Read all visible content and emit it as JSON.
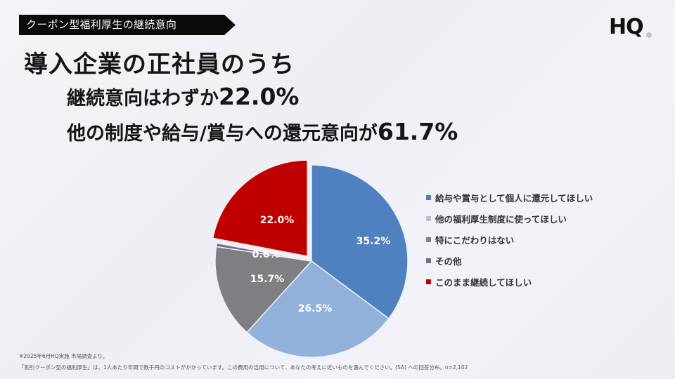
{
  "header": {
    "tag": "クーポン型福利厚生の継続意向",
    "logo": "HQ"
  },
  "headline": "導入企業の正社員のうち",
  "subheadline1": {
    "text": "継続意向はわずか",
    "value": "22.0%"
  },
  "subheadline2": {
    "text": "他の制度や給与/賞与への還元意向が",
    "value": "61.7%"
  },
  "chart_data": {
    "type": "pie",
    "title": "",
    "categories": [
      "給与や賞与として個人に還元してほしい",
      "他の福利厚生制度に使ってほしい",
      "特にこだわりはない",
      "その他",
      "このまま継続してほしい"
    ],
    "values": [
      35.2,
      26.5,
      15.7,
      0.6,
      22.0
    ],
    "labels": [
      "35.2%",
      "26.5%",
      "15.7%",
      "0.6%",
      "22.0%"
    ],
    "colors": [
      "#4f81c0",
      "#92b1da",
      "#7f7f83",
      "#6d6f8a",
      "#c00000"
    ],
    "exploded": [
      "このまま継続してほしい"
    ],
    "legend_position": "right",
    "start_angle": "12 o'clock, clockwise"
  },
  "legend": [
    {
      "label": "給与や賞与として個人に還元してほしい",
      "color": "#4f81c0"
    },
    {
      "label": "他の福利厚生制度に使ってほしい",
      "color": "#b9c3d4"
    },
    {
      "label": "特にこだわりはない",
      "color": "#7f7f83"
    },
    {
      "label": "その他",
      "color": "#6d6f8a"
    },
    {
      "label": "このまま継続してほしい",
      "color": "#c00000"
    }
  ],
  "footnotes": {
    "line1": "※2025年6月HQ実施 市場調査より。",
    "line2": "「割引クーポン型の福利厚生」は、1人あたり年間で数千円のコストがかかっています。この費用の活用について、あなたの考えに近いものを選んでください。(SA) への回答分布。n=2,102"
  }
}
